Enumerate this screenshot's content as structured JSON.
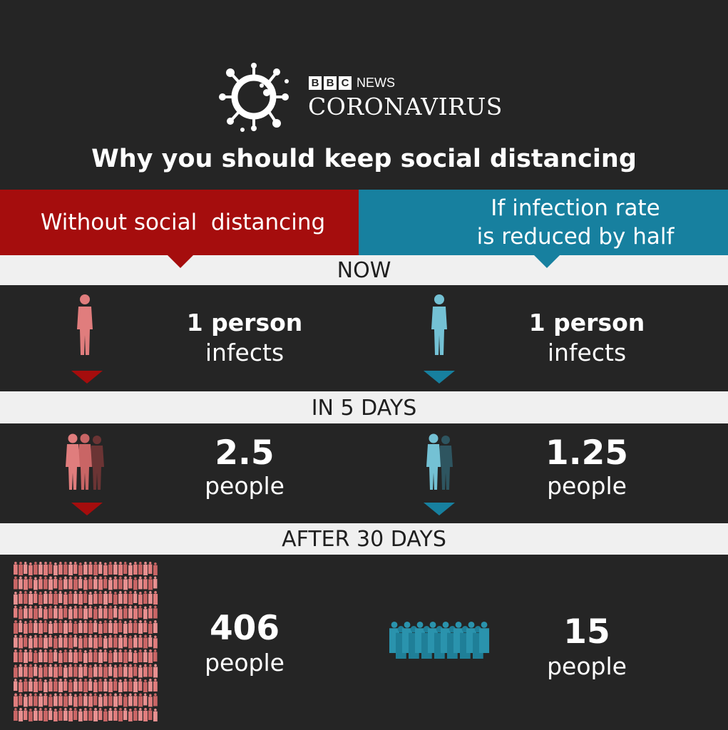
{
  "header": {
    "bbc_letters": [
      "B",
      "B",
      "C"
    ],
    "news": "NEWS",
    "section": "CORONAVIRUS",
    "title": "Why you should keep social distancing"
  },
  "scenarios": {
    "left": {
      "title": "Without social  distancing",
      "color": "#a50d0d",
      "figure_color": "#e07d7d"
    },
    "right": {
      "title_lines": [
        "If infection rate",
        "is reduced by half"
      ],
      "color": "#17809f",
      "figure_color": "#74c1d4"
    }
  },
  "stages": [
    {
      "label": "NOW",
      "left": {
        "number": "1 person",
        "unit": "infects"
      },
      "right": {
        "number": "1 person",
        "unit": "infects"
      }
    },
    {
      "label": "IN 5 DAYS",
      "left": {
        "number": "2.5",
        "unit": "people"
      },
      "right": {
        "number": "1.25",
        "unit": "people"
      }
    },
    {
      "label": "AFTER 30 DAYS",
      "left": {
        "number": "406",
        "unit": "people"
      },
      "right": {
        "number": "15",
        "unit": "people"
      }
    }
  ],
  "icons": {
    "logo": "coronavirus-icon",
    "person": "person-icon",
    "arrow": "triangle-down-icon"
  }
}
